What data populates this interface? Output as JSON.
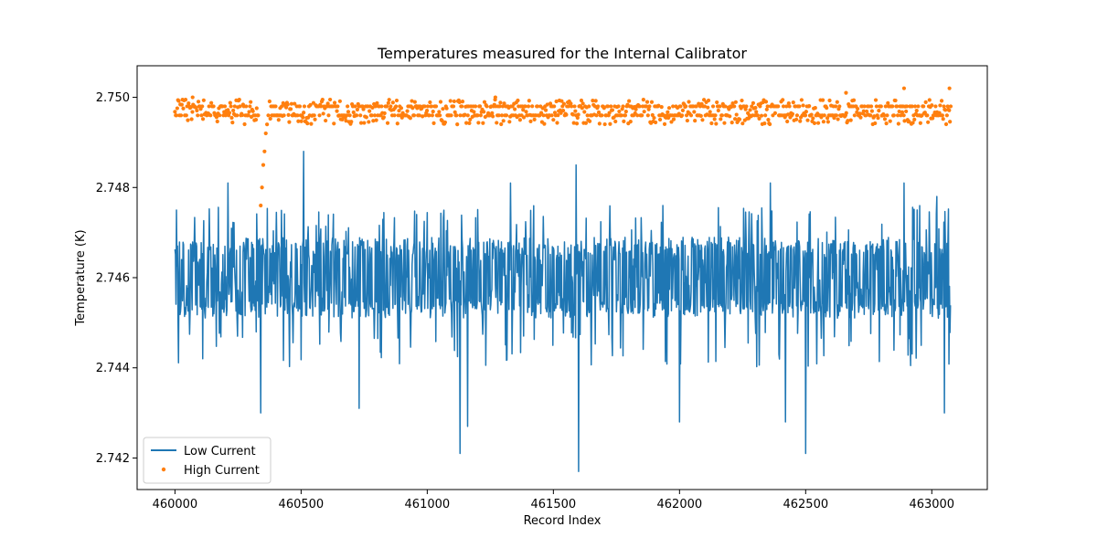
{
  "chart_data": {
    "type": "line+scatter",
    "title": "Temperatures measured for the Internal Calibrator",
    "xlabel": "Record Index",
    "ylabel": "Temperature (K)",
    "xlim": [
      459850,
      463220
    ],
    "ylim": [
      2.7413,
      2.7507
    ],
    "x_ticks": [
      460000,
      460500,
      461000,
      461500,
      462000,
      462500,
      463000
    ],
    "x_tick_labels": [
      "460000",
      "460500",
      "461000",
      "461500",
      "462000",
      "462500",
      "463000"
    ],
    "y_ticks": [
      2.742,
      2.744,
      2.746,
      2.748,
      2.75
    ],
    "y_tick_labels": [
      "2.742",
      "2.744",
      "2.746",
      "2.748",
      "2.750"
    ],
    "legend_position": "lower-left",
    "series": [
      {
        "name": "Low Current",
        "kind": "line",
        "color": "#1f77b4",
        "x_start": 460000,
        "x_end": 463075,
        "baseline": 2.7458,
        "spikes": [
          {
            "x": 460005,
            "y": 2.7475
          },
          {
            "x": 460210,
            "y": 2.7481
          },
          {
            "x": 460340,
            "y": 2.743
          },
          {
            "x": 460510,
            "y": 2.7488
          },
          {
            "x": 460730,
            "y": 2.7431
          },
          {
            "x": 461130,
            "y": 2.7421
          },
          {
            "x": 461160,
            "y": 2.7427
          },
          {
            "x": 461330,
            "y": 2.7481
          },
          {
            "x": 461590,
            "y": 2.7485
          },
          {
            "x": 461600,
            "y": 2.7417
          },
          {
            "x": 462000,
            "y": 2.7428
          },
          {
            "x": 462360,
            "y": 2.7481
          },
          {
            "x": 462420,
            "y": 2.7428
          },
          {
            "x": 462500,
            "y": 2.7421
          },
          {
            "x": 462890,
            "y": 2.7481
          },
          {
            "x": 463020,
            "y": 2.7478
          },
          {
            "x": 463050,
            "y": 2.743
          }
        ]
      },
      {
        "name": "High Current",
        "kind": "scatter",
        "color": "#ff7f0e",
        "x_start": 460000,
        "x_end": 463075,
        "baseline": 2.7497,
        "dip": [
          {
            "x": 460340,
            "y": 2.7476
          },
          {
            "x": 460345,
            "y": 2.748
          },
          {
            "x": 460350,
            "y": 2.7485
          },
          {
            "x": 460355,
            "y": 2.7488
          },
          {
            "x": 460360,
            "y": 2.7492
          },
          {
            "x": 460365,
            "y": 2.7494
          },
          {
            "x": 460370,
            "y": 2.7496
          }
        ],
        "highs": [
          {
            "x": 460070,
            "y": 2.75
          },
          {
            "x": 461270,
            "y": 2.75
          },
          {
            "x": 462660,
            "y": 2.7501
          },
          {
            "x": 462890,
            "y": 2.7502
          },
          {
            "x": 463070,
            "y": 2.7502
          }
        ]
      }
    ]
  }
}
